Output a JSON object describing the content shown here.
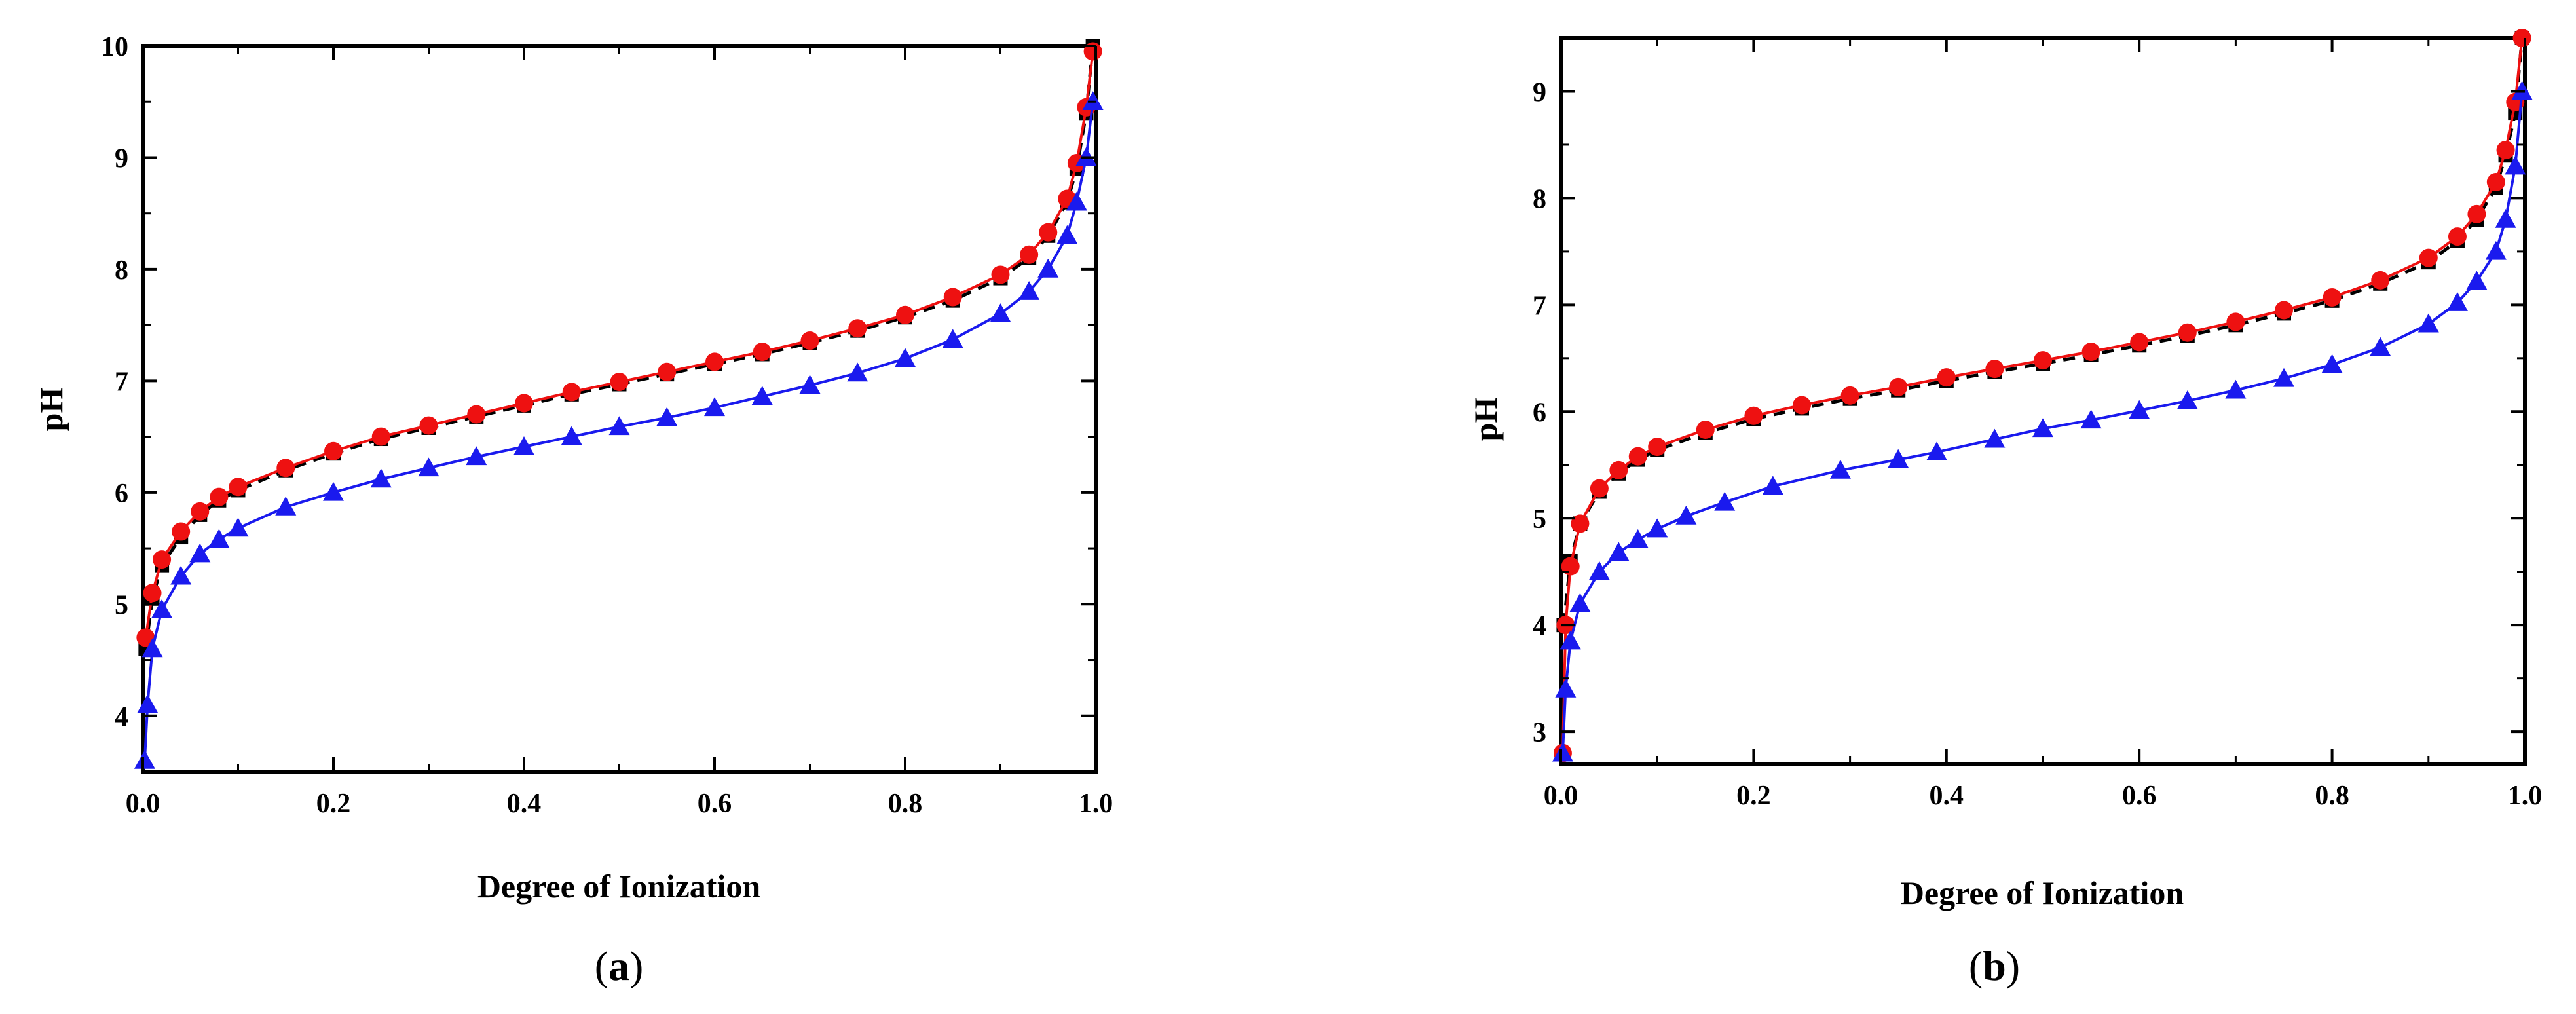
{
  "chart_data": [
    {
      "type": "scatter",
      "panel_label": "a",
      "xlabel": "Degree of Ionization",
      "ylabel": "pH",
      "xlim": [
        0.0,
        1.0
      ],
      "ylim": [
        3.5,
        10
      ],
      "x_ticks": [
        "0.0",
        "0.2",
        "0.4",
        "0.6",
        "0.8",
        "1.0"
      ],
      "y_ticks": [
        "4",
        "5",
        "6",
        "7",
        "8",
        "9",
        "10"
      ],
      "grid": false,
      "series": [
        {
          "marker": "square",
          "color": "#000000",
          "line": "dashed",
          "points": [
            [
              0.003,
              4.6
            ],
            [
              0.01,
              5.05
            ],
            [
              0.02,
              5.35
            ],
            [
              0.04,
              5.6
            ],
            [
              0.06,
              5.8
            ],
            [
              0.08,
              5.93
            ],
            [
              0.1,
              6.02
            ],
            [
              0.15,
              6.2
            ],
            [
              0.2,
              6.35
            ],
            [
              0.25,
              6.48
            ],
            [
              0.3,
              6.58
            ],
            [
              0.35,
              6.68
            ],
            [
              0.4,
              6.78
            ],
            [
              0.45,
              6.88
            ],
            [
              0.5,
              6.97
            ],
            [
              0.55,
              7.06
            ],
            [
              0.6,
              7.15
            ],
            [
              0.65,
              7.24
            ],
            [
              0.7,
              7.34
            ],
            [
              0.75,
              7.45
            ],
            [
              0.8,
              7.57
            ],
            [
              0.85,
              7.72
            ],
            [
              0.9,
              7.92
            ],
            [
              0.93,
              8.1
            ],
            [
              0.95,
              8.3
            ],
            [
              0.97,
              8.6
            ],
            [
              0.98,
              8.9
            ],
            [
              0.99,
              9.4
            ],
            [
              0.997,
              10.0
            ]
          ]
        },
        {
          "marker": "circle",
          "color": "#ee1111",
          "line": "solid",
          "points": [
            [
              0.003,
              4.7
            ],
            [
              0.01,
              5.1
            ],
            [
              0.02,
              5.4
            ],
            [
              0.04,
              5.65
            ],
            [
              0.06,
              5.83
            ],
            [
              0.08,
              5.96
            ],
            [
              0.1,
              6.05
            ],
            [
              0.15,
              6.22
            ],
            [
              0.2,
              6.37
            ],
            [
              0.25,
              6.5
            ],
            [
              0.3,
              6.6
            ],
            [
              0.35,
              6.7
            ],
            [
              0.4,
              6.8
            ],
            [
              0.45,
              6.9
            ],
            [
              0.5,
              6.99
            ],
            [
              0.55,
              7.08
            ],
            [
              0.6,
              7.17
            ],
            [
              0.65,
              7.26
            ],
            [
              0.7,
              7.36
            ],
            [
              0.75,
              7.47
            ],
            [
              0.8,
              7.59
            ],
            [
              0.85,
              7.75
            ],
            [
              0.9,
              7.95
            ],
            [
              0.93,
              8.13
            ],
            [
              0.95,
              8.33
            ],
            [
              0.97,
              8.63
            ],
            [
              0.98,
              8.95
            ],
            [
              0.99,
              9.45
            ],
            [
              0.997,
              9.95
            ]
          ]
        },
        {
          "marker": "triangle",
          "color": "#1a1aee",
          "line": "solid",
          "points": [
            [
              0.002,
              3.6
            ],
            [
              0.005,
              4.1
            ],
            [
              0.01,
              4.6
            ],
            [
              0.02,
              4.95
            ],
            [
              0.04,
              5.25
            ],
            [
              0.06,
              5.45
            ],
            [
              0.08,
              5.58
            ],
            [
              0.1,
              5.68
            ],
            [
              0.15,
              5.87
            ],
            [
              0.2,
              6.0
            ],
            [
              0.25,
              6.12
            ],
            [
              0.3,
              6.22
            ],
            [
              0.35,
              6.32
            ],
            [
              0.4,
              6.41
            ],
            [
              0.45,
              6.5
            ],
            [
              0.5,
              6.59
            ],
            [
              0.55,
              6.67
            ],
            [
              0.6,
              6.76
            ],
            [
              0.65,
              6.86
            ],
            [
              0.7,
              6.96
            ],
            [
              0.75,
              7.07
            ],
            [
              0.8,
              7.2
            ],
            [
              0.85,
              7.37
            ],
            [
              0.9,
              7.6
            ],
            [
              0.93,
              7.8
            ],
            [
              0.95,
              8.0
            ],
            [
              0.97,
              8.3
            ],
            [
              0.98,
              8.6
            ],
            [
              0.99,
              9.0
            ],
            [
              0.997,
              9.5
            ]
          ]
        }
      ]
    },
    {
      "type": "scatter",
      "panel_label": "b",
      "xlabel": "Degree of Ionization",
      "ylabel": "pH",
      "xlim": [
        0.0,
        1.0
      ],
      "ylim": [
        2.7,
        9.5
      ],
      "x_ticks": [
        "0.0",
        "0.2",
        "0.4",
        "0.6",
        "0.8",
        "1.0"
      ],
      "y_ticks": [
        "3",
        "4",
        "5",
        "6",
        "7",
        "8",
        "9"
      ],
      "grid": false,
      "series": [
        {
          "marker": "square",
          "color": "#000000",
          "line": "dashed",
          "points": [
            [
              0.003,
              4.0
            ],
            [
              0.01,
              4.6
            ],
            [
              0.02,
              4.95
            ],
            [
              0.04,
              5.25
            ],
            [
              0.06,
              5.42
            ],
            [
              0.08,
              5.55
            ],
            [
              0.1,
              5.64
            ],
            [
              0.15,
              5.8
            ],
            [
              0.2,
              5.93
            ],
            [
              0.25,
              6.03
            ],
            [
              0.3,
              6.12
            ],
            [
              0.35,
              6.2
            ],
            [
              0.4,
              6.29
            ],
            [
              0.45,
              6.37
            ],
            [
              0.5,
              6.45
            ],
            [
              0.55,
              6.53
            ],
            [
              0.6,
              6.62
            ],
            [
              0.65,
              6.71
            ],
            [
              0.7,
              6.81
            ],
            [
              0.75,
              6.92
            ],
            [
              0.8,
              7.04
            ],
            [
              0.85,
              7.2
            ],
            [
              0.9,
              7.4
            ],
            [
              0.93,
              7.6
            ],
            [
              0.95,
              7.8
            ],
            [
              0.97,
              8.1
            ],
            [
              0.98,
              8.4
            ],
            [
              0.99,
              8.8
            ],
            [
              0.997,
              9.5
            ]
          ]
        },
        {
          "marker": "circle",
          "color": "#ee1111",
          "line": "solid",
          "points": [
            [
              0.002,
              2.8
            ],
            [
              0.005,
              4.0
            ],
            [
              0.01,
              4.55
            ],
            [
              0.02,
              4.95
            ],
            [
              0.04,
              5.28
            ],
            [
              0.06,
              5.45
            ],
            [
              0.08,
              5.58
            ],
            [
              0.1,
              5.67
            ],
            [
              0.15,
              5.83
            ],
            [
              0.2,
              5.96
            ],
            [
              0.25,
              6.06
            ],
            [
              0.3,
              6.15
            ],
            [
              0.35,
              6.23
            ],
            [
              0.4,
              6.32
            ],
            [
              0.45,
              6.4
            ],
            [
              0.5,
              6.48
            ],
            [
              0.55,
              6.56
            ],
            [
              0.6,
              6.65
            ],
            [
              0.65,
              6.74
            ],
            [
              0.7,
              6.84
            ],
            [
              0.75,
              6.95
            ],
            [
              0.8,
              7.07
            ],
            [
              0.85,
              7.23
            ],
            [
              0.9,
              7.44
            ],
            [
              0.93,
              7.64
            ],
            [
              0.95,
              7.85
            ],
            [
              0.97,
              8.15
            ],
            [
              0.98,
              8.45
            ],
            [
              0.99,
              8.9
            ],
            [
              0.997,
              9.5
            ]
          ]
        },
        {
          "marker": "triangle",
          "color": "#1a1aee",
          "line": "solid",
          "points": [
            [
              0.002,
              2.8
            ],
            [
              0.005,
              3.4
            ],
            [
              0.01,
              3.85
            ],
            [
              0.02,
              4.2
            ],
            [
              0.04,
              4.5
            ],
            [
              0.06,
              4.68
            ],
            [
              0.08,
              4.8
            ],
            [
              0.1,
              4.9
            ],
            [
              0.13,
              5.02
            ],
            [
              0.17,
              5.15
            ],
            [
              0.22,
              5.3
            ],
            [
              0.29,
              5.45
            ],
            [
              0.35,
              5.55
            ],
            [
              0.39,
              5.62
            ],
            [
              0.45,
              5.74
            ],
            [
              0.5,
              5.84
            ],
            [
              0.55,
              5.92
            ],
            [
              0.6,
              6.01
            ],
            [
              0.65,
              6.1
            ],
            [
              0.7,
              6.2
            ],
            [
              0.75,
              6.31
            ],
            [
              0.8,
              6.44
            ],
            [
              0.85,
              6.6
            ],
            [
              0.9,
              6.82
            ],
            [
              0.93,
              7.02
            ],
            [
              0.95,
              7.22
            ],
            [
              0.97,
              7.5
            ],
            [
              0.98,
              7.8
            ],
            [
              0.99,
              8.3
            ],
            [
              0.997,
              9.0
            ]
          ]
        }
      ]
    }
  ]
}
